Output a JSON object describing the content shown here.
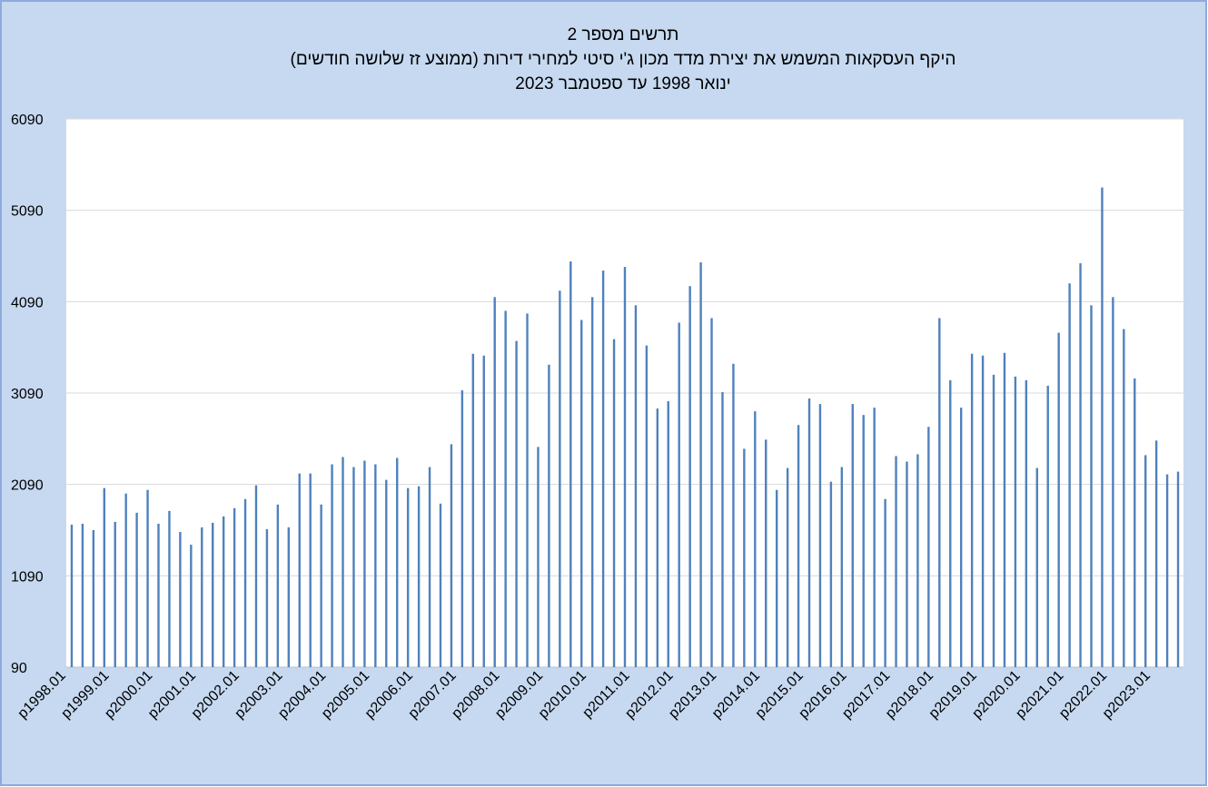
{
  "chart_data": {
    "type": "bar",
    "title": [
      "תרשים מספר 2",
      "היקף העסקאות המשמש את יצירת מדד מכון ג'י סיטי למחירי דירות (ממוצע זז שלושה חודשים)",
      "ינואר 1998 עד ספטמבר 2023"
    ],
    "categories": [
      "p1998.01",
      null,
      null,
      null,
      "p1999.01",
      null,
      null,
      null,
      "p2000.01",
      null,
      null,
      null,
      "p2001.01",
      null,
      null,
      null,
      "p2002.01",
      null,
      null,
      null,
      "p2003.01",
      null,
      null,
      null,
      "p2004.01",
      null,
      null,
      null,
      "p2005.01",
      null,
      null,
      null,
      "p2006.01",
      null,
      null,
      null,
      "p2007.01",
      null,
      null,
      null,
      "p2008.01",
      null,
      null,
      null,
      "p2009.01",
      null,
      null,
      null,
      "p2010.01",
      null,
      null,
      null,
      "p2011.01",
      null,
      null,
      null,
      "p2012.01",
      null,
      null,
      null,
      "p2013.01",
      null,
      null,
      null,
      "p2014.01",
      null,
      null,
      null,
      "p2015.01",
      null,
      null,
      null,
      "p2016.01",
      null,
      null,
      null,
      "p2017.01",
      null,
      null,
      null,
      "p2018.01",
      null,
      null,
      null,
      "p2019.01",
      null,
      null,
      null,
      "p2020.01",
      null,
      null,
      null,
      "p2021.01",
      null,
      null,
      null,
      "p2022.01",
      null,
      null,
      null,
      "p2023.01",
      null,
      null
    ],
    "values": [
      1650,
      1660,
      1590,
      2050,
      1680,
      1990,
      1780,
      2030,
      1660,
      1800,
      1570,
      1430,
      1620,
      1670,
      1740,
      1830,
      1930,
      2080,
      1600,
      1870,
      1620,
      2210,
      2210,
      1870,
      2310,
      2390,
      2280,
      2350,
      2310,
      2140,
      2380,
      2050,
      2070,
      2280,
      1880,
      2530,
      3120,
      3520,
      3500,
      4140,
      3990,
      3660,
      3960,
      2500,
      3400,
      4210,
      4530,
      3890,
      4140,
      4430,
      3680,
      4470,
      4050,
      3610,
      2920,
      3000,
      3860,
      4260,
      4520,
      3910,
      3100,
      3410,
      2480,
      2890,
      2580,
      2030,
      2270,
      2740,
      3030,
      2970,
      2120,
      2280,
      2970,
      2850,
      2930,
      1930,
      2400,
      2340,
      2420,
      2720,
      3910,
      3230,
      2930,
      3520,
      3500,
      3290,
      3530,
      3270,
      3230,
      2270,
      3170,
      3750,
      4290,
      4510,
      4050,
      5340,
      4140,
      3790,
      3250,
      2410,
      2570,
      2200,
      2230
    ],
    "color": "#4f81bd",
    "ylim": [
      90,
      6090
    ],
    "yticks": [
      90,
      1090,
      2090,
      3090,
      4090,
      5090,
      6090
    ],
    "grid": true
  }
}
